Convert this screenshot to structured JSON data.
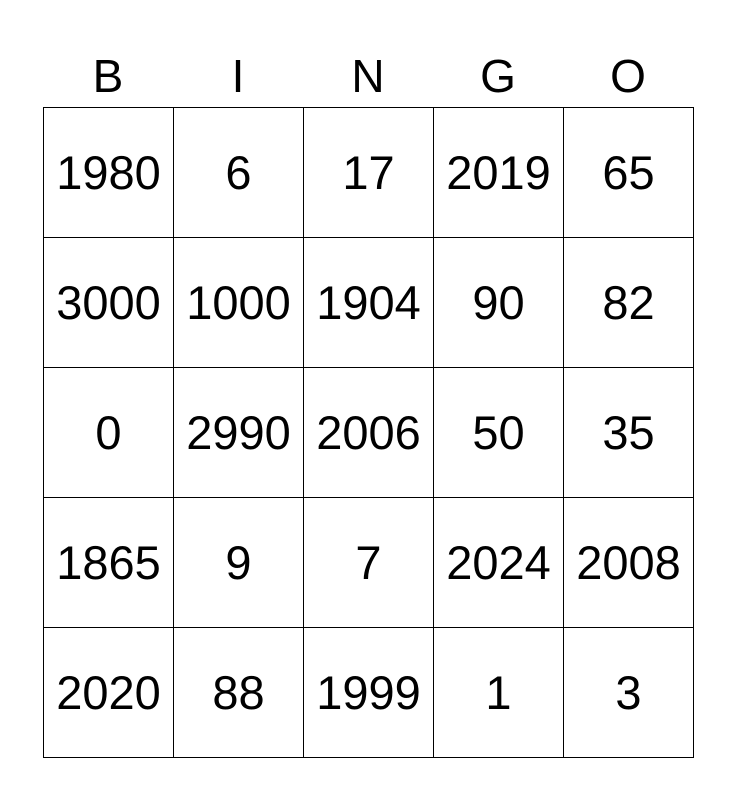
{
  "header": [
    "B",
    "I",
    "N",
    "G",
    "O"
  ],
  "rows": [
    [
      "1980",
      "6",
      "17",
      "2019",
      "65"
    ],
    [
      "3000",
      "1000",
      "1904",
      "90",
      "82"
    ],
    [
      "0",
      "2990",
      "2006",
      "50",
      "35"
    ],
    [
      "1865",
      "9",
      "7",
      "2024",
      "2008"
    ],
    [
      "2020",
      "88",
      "1999",
      "1",
      "3"
    ]
  ]
}
